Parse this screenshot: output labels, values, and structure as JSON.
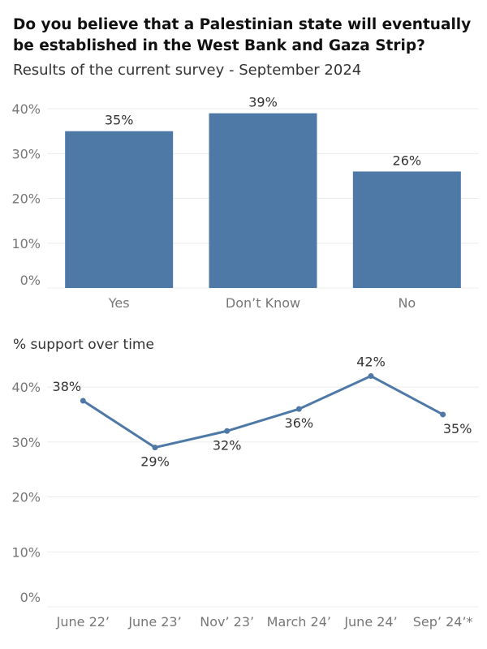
{
  "header": {
    "title": "Do you believe that a Palestinian state will eventually be established in the West Bank and Gaza Strip?",
    "subtitle": "Results of the current survey - September 2024"
  },
  "colors": {
    "bar": "#4e79a7",
    "line": "#4e79a7",
    "grid": "#ececec"
  },
  "chart_data": [
    {
      "type": "bar",
      "title": "",
      "categories": [
        "Yes",
        "Don’t Know",
        "No"
      ],
      "values": [
        35,
        39,
        26
      ],
      "value_labels": [
        "35%",
        "39%",
        "26%"
      ],
      "ylim": [
        0,
        44
      ],
      "yticks": [
        0,
        10,
        20,
        30,
        40
      ],
      "ytick_labels": [
        "0%",
        "10%",
        "20%",
        "30%",
        "40%"
      ],
      "grid": true,
      "xlabel": "",
      "ylabel": ""
    },
    {
      "type": "line",
      "title": "% support over time",
      "categories": [
        "June 22’",
        "June 23’",
        "Nov’ 23’",
        "March 24’",
        "June 24’",
        "Sep’ 24’*"
      ],
      "values": [
        37.5,
        29,
        32,
        36,
        42,
        35
      ],
      "value_labels": [
        "38%",
        "29%",
        "32%",
        "36%",
        "42%",
        "35%"
      ],
      "ylim": [
        0,
        44
      ],
      "yticks": [
        0,
        10,
        20,
        30,
        40
      ],
      "ytick_labels": [
        "0%",
        "10%",
        "20%",
        "30%",
        "40%"
      ],
      "grid": true,
      "xlabel": "",
      "ylabel": ""
    }
  ]
}
